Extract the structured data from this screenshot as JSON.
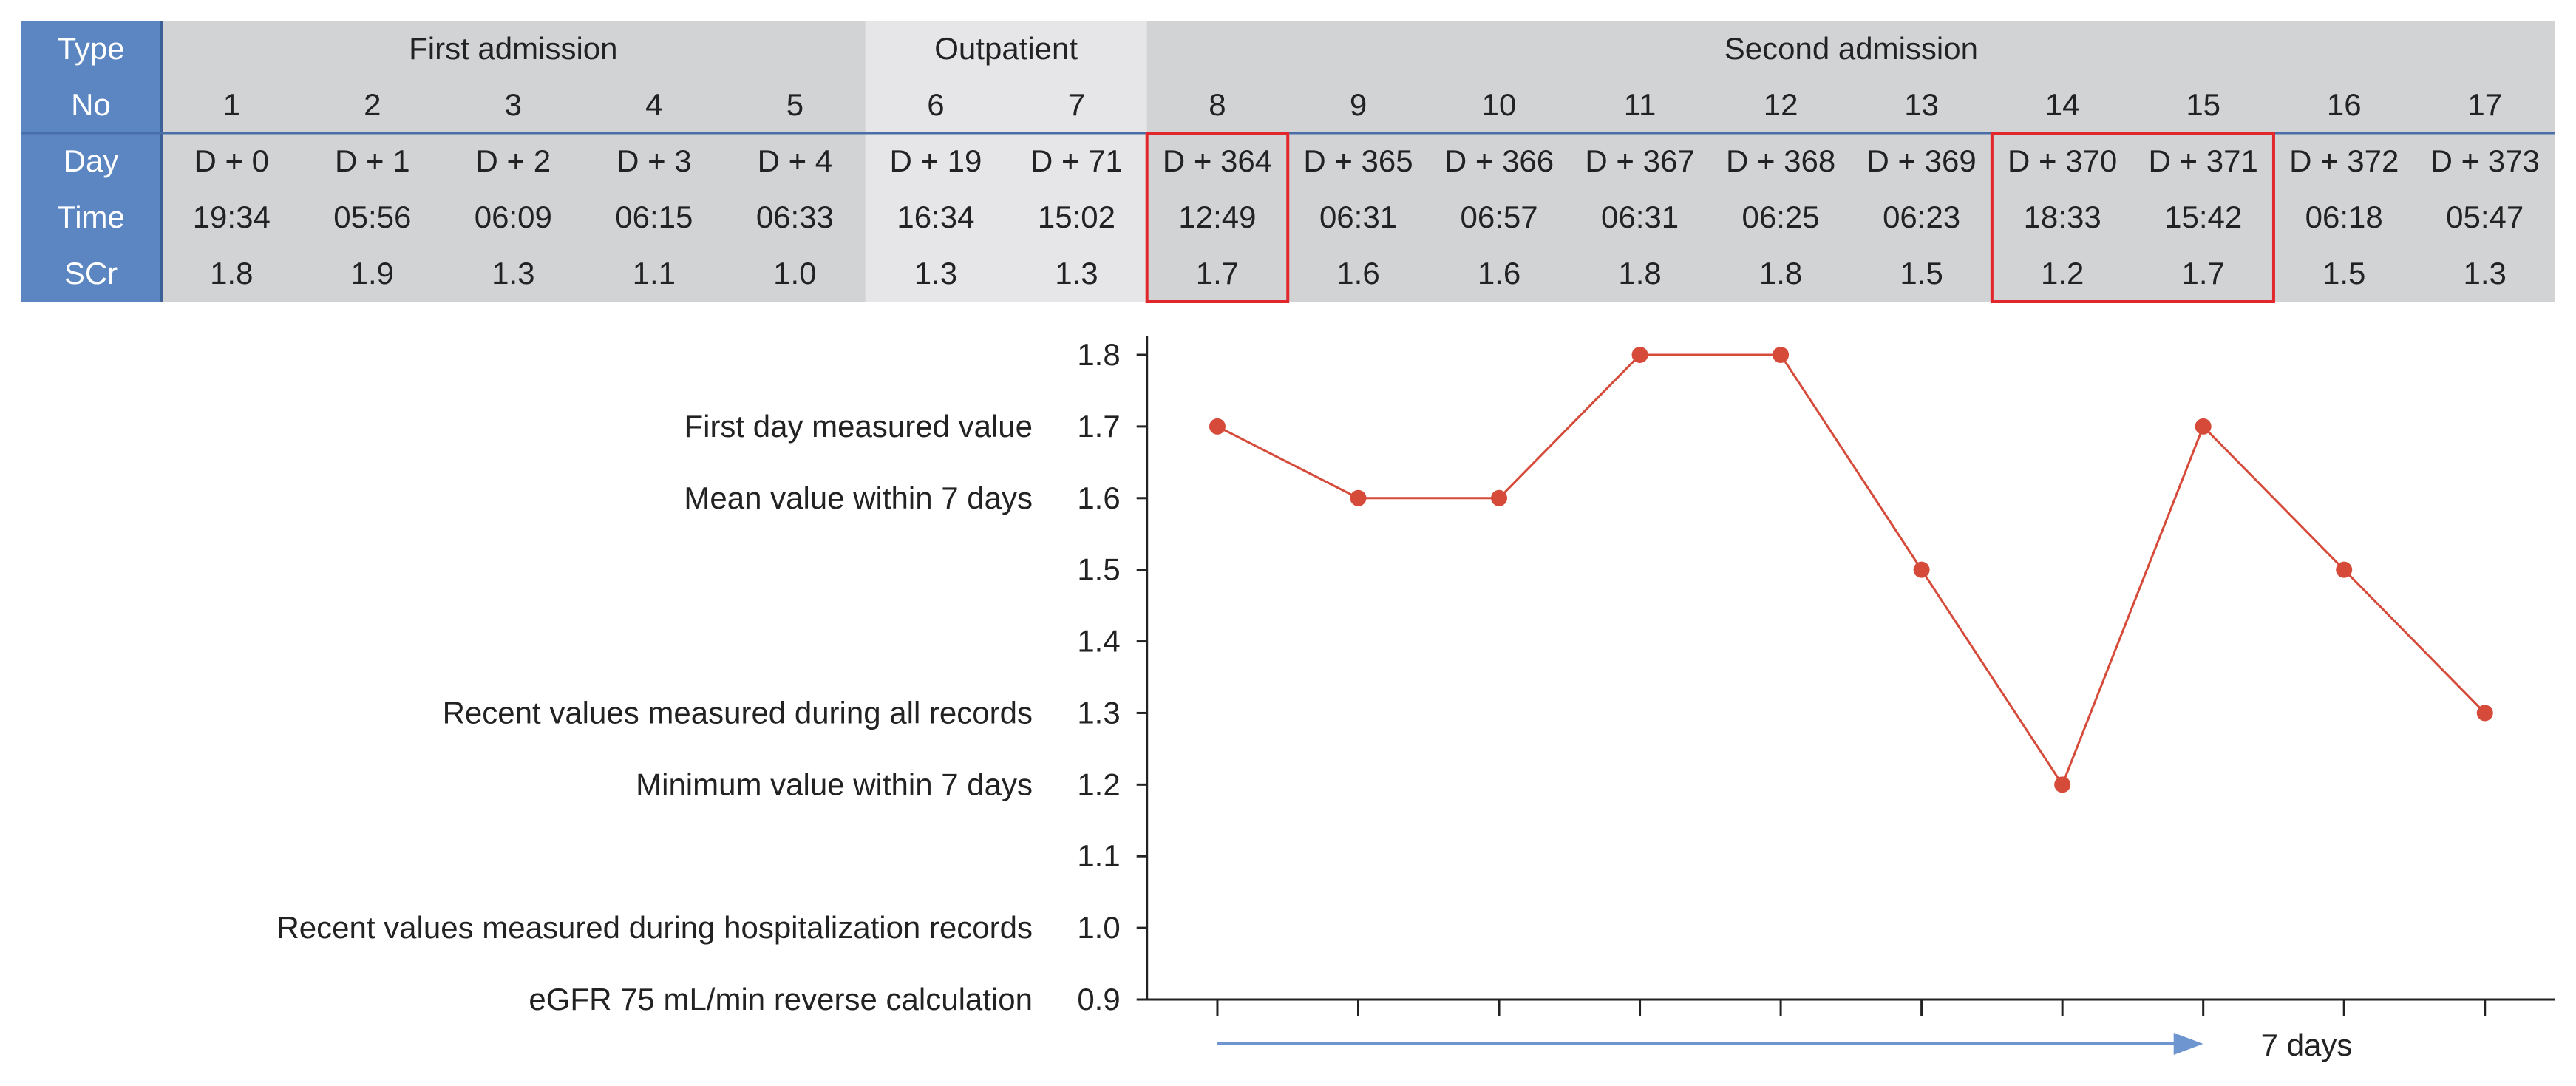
{
  "colors": {
    "header_blue": "#5b86c2",
    "header_band": "#d2d3d5",
    "outpatient_band": "#e6e6e8",
    "series_red": "#d64a3a",
    "highlight_red": "#e2272c",
    "arrow_blue": "#6e95cf"
  },
  "row_labels": [
    "Type",
    "No",
    "Day",
    "Time",
    "SCr"
  ],
  "groups": [
    {
      "label": "First admission",
      "columns": [
        1,
        2,
        3,
        4,
        5
      ]
    },
    {
      "label": "Outpatient",
      "columns": [
        6,
        7
      ]
    },
    {
      "label": "Second admission",
      "columns": [
        8,
        9,
        10,
        11,
        12,
        13,
        14,
        15,
        16,
        17
      ]
    }
  ],
  "table": {
    "no": [
      "1",
      "2",
      "3",
      "4",
      "5",
      "6",
      "7",
      "8",
      "9",
      "10",
      "11",
      "12",
      "13",
      "14",
      "15",
      "16",
      "17"
    ],
    "day": [
      "D + 0",
      "D + 1",
      "D + 2",
      "D + 3",
      "D + 4",
      "D + 19",
      "D + 71",
      "D + 364",
      "D + 365",
      "D + 366",
      "D + 367",
      "D + 368",
      "D + 369",
      "D + 370",
      "D + 371",
      "D + 372",
      "D + 373"
    ],
    "time": [
      "19:34",
      "05:56",
      "06:09",
      "06:15",
      "06:33",
      "16:34",
      "15:02",
      "12:49",
      "06:31",
      "06:57",
      "06:31",
      "06:25",
      "06:23",
      "18:33",
      "15:42",
      "06:18",
      "05:47"
    ],
    "scr": [
      "1.8",
      "1.9",
      "1.3",
      "1.1",
      "1.0",
      "1.3",
      "1.3",
      "1.7",
      "1.6",
      "1.6",
      "1.8",
      "1.8",
      "1.5",
      "1.2",
      "1.7",
      "1.5",
      "1.3"
    ]
  },
  "highlight_columns": [
    [
      8,
      8
    ],
    [
      14,
      15
    ]
  ],
  "chart_data": {
    "type": "line",
    "x": [
      8,
      9,
      10,
      11,
      12,
      13,
      14,
      15,
      16,
      17
    ],
    "values": [
      1.7,
      1.6,
      1.6,
      1.8,
      1.8,
      1.5,
      1.2,
      1.7,
      1.5,
      1.3
    ],
    "ylim": [
      0.9,
      1.8
    ],
    "yticks": [
      "1.8",
      "1.7",
      "1.6",
      "1.5",
      "1.4",
      "1.3",
      "1.2",
      "1.1",
      "1.0",
      "0.9"
    ],
    "annotations": [
      {
        "label": "First day measured value",
        "y": 1.7
      },
      {
        "label": "Mean value within 7 days",
        "y": 1.6
      },
      {
        "label": "Recent values measured during all records",
        "y": 1.3
      },
      {
        "label": "Minimum value within 7 days",
        "y": 1.2
      },
      {
        "label": "Recent values measured during hospitalization records",
        "y": 1.0
      },
      {
        "label": "eGFR 75 mL/min reverse calculation",
        "y": 0.9
      }
    ],
    "arrow": {
      "from": 8,
      "to": 15,
      "label": "7 days"
    }
  }
}
